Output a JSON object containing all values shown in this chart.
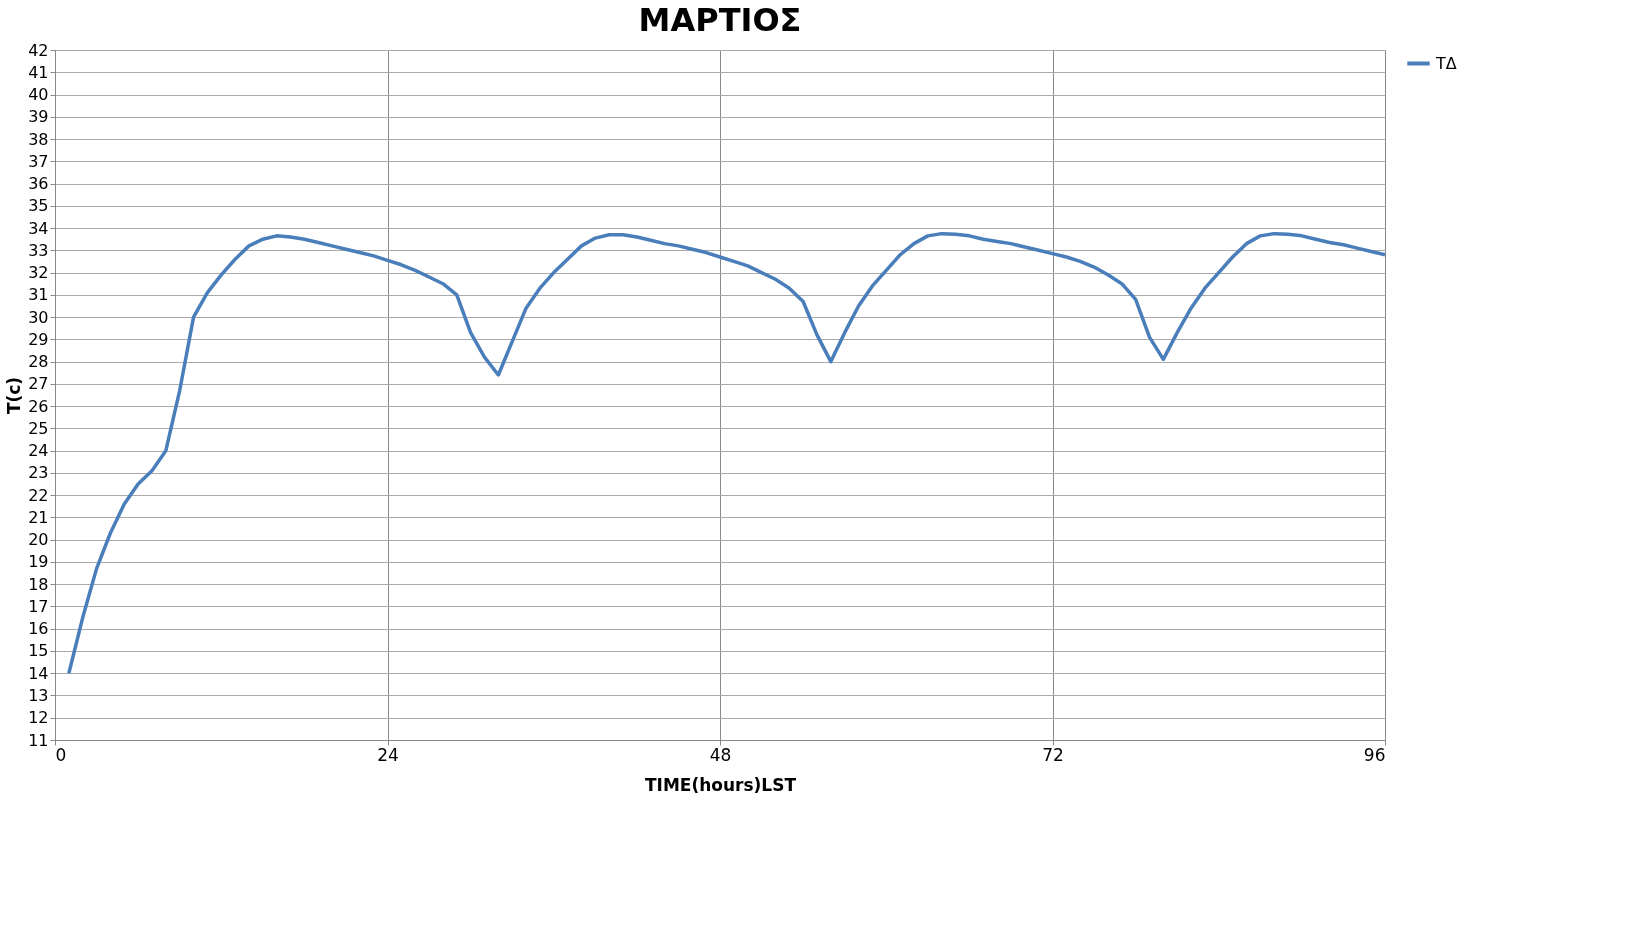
{
  "chart_data": {
    "type": "line",
    "title": "ΜΑΡΤΙΟΣ",
    "xlabel": "TIME(hours)LST",
    "ylabel": "T(c)",
    "x": [
      1,
      2,
      3,
      4,
      5,
      6,
      7,
      8,
      9,
      10,
      11,
      12,
      13,
      14,
      15,
      16,
      17,
      18,
      19,
      20,
      21,
      22,
      23,
      24,
      25,
      26,
      27,
      28,
      29,
      30,
      31,
      32,
      33,
      34,
      35,
      36,
      37,
      38,
      39,
      40,
      41,
      42,
      43,
      44,
      45,
      46,
      47,
      48,
      49,
      50,
      51,
      52,
      53,
      54,
      55,
      56,
      57,
      58,
      59,
      60,
      61,
      62,
      63,
      64,
      65,
      66,
      67,
      68,
      69,
      70,
      71,
      72,
      73,
      74,
      75,
      76,
      77,
      78,
      79,
      80,
      81,
      82,
      83,
      84,
      85,
      86,
      87,
      88,
      89,
      90,
      91,
      92,
      93,
      94,
      95,
      96
    ],
    "series": [
      {
        "name": "ΤΔ",
        "color": "#4a7ebb",
        "values": [
          14,
          16.5,
          18.7,
          20.3,
          21.6,
          22.5,
          23.1,
          24,
          26.7,
          30,
          31.1,
          31.9,
          32.6,
          33.2,
          33.5,
          33.65,
          33.6,
          33.5,
          33.35,
          33.2,
          33.05,
          32.9,
          32.75,
          32.55,
          32.35,
          32.1,
          31.8,
          31.5,
          31.0,
          29.3,
          28.2,
          27.4,
          28.9,
          30.4,
          31.3,
          32.0,
          32.6,
          33.2,
          33.55,
          33.7,
          33.7,
          33.6,
          33.45,
          33.3,
          33.2,
          33.05,
          32.9,
          32.7,
          32.5,
          32.3,
          32.0,
          31.7,
          31.3,
          30.7,
          29.2,
          28.0,
          29.3,
          30.5,
          31.4,
          32.1,
          32.8,
          33.3,
          33.65,
          33.75,
          33.72,
          33.65,
          33.5,
          33.4,
          33.3,
          33.15,
          33.0,
          32.85,
          32.7,
          32.5,
          32.25,
          31.9,
          31.5,
          30.8,
          29.1,
          28.1,
          29.3,
          30.4,
          31.3,
          32.0,
          32.7,
          33.3,
          33.65,
          33.75,
          33.72,
          33.65,
          33.5,
          33.35,
          33.25,
          33.1,
          32.95,
          32.8
        ]
      }
    ],
    "xlim": [
      0,
      96
    ],
    "xticks": [
      0,
      24,
      48,
      72,
      96
    ],
    "ylim": [
      11,
      42
    ],
    "yticks": [
      11,
      12,
      13,
      14,
      15,
      16,
      17,
      18,
      19,
      20,
      21,
      22,
      23,
      24,
      25,
      26,
      27,
      28,
      29,
      30,
      31,
      32,
      33,
      34,
      35,
      36,
      37,
      38,
      39,
      40,
      41,
      42
    ],
    "grid": true,
    "legend": "right",
    "marker": "none",
    "line_style": "solid"
  }
}
